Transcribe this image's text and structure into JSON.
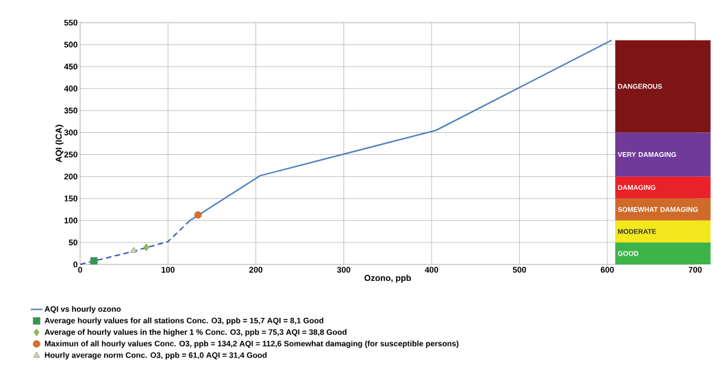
{
  "chart_data": {
    "type": "line",
    "xlabel": "Ozono, ppb",
    "ylabel": "AQI   (ICA)",
    "xlim": [
      0,
      700
    ],
    "ylim": [
      0,
      550
    ],
    "xticks": [
      0,
      100,
      200,
      300,
      400,
      500,
      600,
      700
    ],
    "yticks": [
      0,
      50,
      100,
      150,
      200,
      250,
      300,
      350,
      400,
      450,
      500,
      550
    ],
    "grid": true,
    "legend": "bottom",
    "series": [
      {
        "type": "line",
        "name": "AQI vs hourly ozono",
        "color": "#4a7ebb",
        "x": [
          125,
          205,
          405,
          605
        ],
        "values": [
          100,
          202,
          305,
          510
        ]
      },
      {
        "type": "line",
        "color": "#4058b0",
        "line_style": "dashed",
        "x": [
          0,
          61,
          75,
          100,
          125
        ],
        "values": [
          0,
          30,
          38,
          52,
          100
        ]
      },
      {
        "type": "scatter",
        "name": "Average hourly values for all stations Conc. O3, ppb = 15,7 AQI = 8,1 Good",
        "color": "#2e9b48",
        "marker": "square",
        "x": [
          15.7
        ],
        "values": [
          8.1
        ]
      },
      {
        "type": "scatter",
        "name": "Average of hourly values in the higher 1 %  Conc. O3, ppb = 75,3 AQI = 38,8 Good",
        "color": "#8dc63f",
        "marker": "diamond",
        "x": [
          75.3
        ],
        "values": [
          38.8
        ]
      },
      {
        "type": "scatter",
        "name": "Maximun of all hourly values  Conc. O3, ppb = 134,2 AQI = 112,6 Somewhat damaging (for susceptible persons)",
        "color": "#e46c24",
        "marker": "circle",
        "x": [
          134.2
        ],
        "values": [
          112.6
        ]
      },
      {
        "type": "scatter",
        "name": "Hourly average norm Conc. O3, ppb = 61,0 AQI = 31,4 Good",
        "color": "#d4dcae",
        "marker": "triangle",
        "x": [
          61.0
        ],
        "values": [
          31.4
        ]
      }
    ],
    "bands": [
      {
        "axis": "y",
        "from": 0,
        "to": 50,
        "label": "GOOD",
        "color": "#3cb44a"
      },
      {
        "axis": "y",
        "from": 50,
        "to": 100,
        "label": "MODERATE",
        "color": "#f2e81c"
      },
      {
        "axis": "y",
        "from": 100,
        "to": 150,
        "label": "SOMEWHAT DAMAGING",
        "color": "#d06a28"
      },
      {
        "axis": "y",
        "from": 150,
        "to": 200,
        "label": "DAMAGING",
        "color": "#ea2128"
      },
      {
        "axis": "y",
        "from": 200,
        "to": 300,
        "label": "VERY DAMAGING",
        "color": "#6f3a9a"
      },
      {
        "axis": "y",
        "from": 300,
        "to": 510,
        "label": "DANGEROUS",
        "color": "#7d1416"
      }
    ]
  }
}
